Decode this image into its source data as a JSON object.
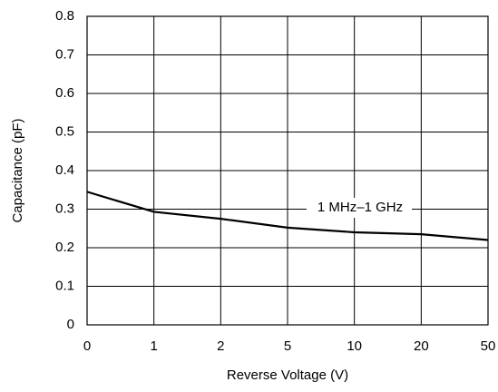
{
  "chart_data": {
    "type": "line",
    "x_label": "Reverse Voltage (V)",
    "y_label": "Capacitance (pF)",
    "categories": [
      "0",
      "1",
      "2",
      "5",
      "10",
      "20",
      "50"
    ],
    "series": [
      {
        "name": "1 MHz–1 GHz",
        "color": "#000000",
        "values": [
          0.345,
          0.293,
          0.275,
          0.252,
          0.24,
          0.235,
          0.22
        ]
      }
    ],
    "ylim": [
      0,
      0.8
    ],
    "yticks": [
      0,
      0.1,
      0.2,
      0.3,
      0.4,
      0.5,
      0.6,
      0.7,
      0.8
    ],
    "grid": true
  }
}
